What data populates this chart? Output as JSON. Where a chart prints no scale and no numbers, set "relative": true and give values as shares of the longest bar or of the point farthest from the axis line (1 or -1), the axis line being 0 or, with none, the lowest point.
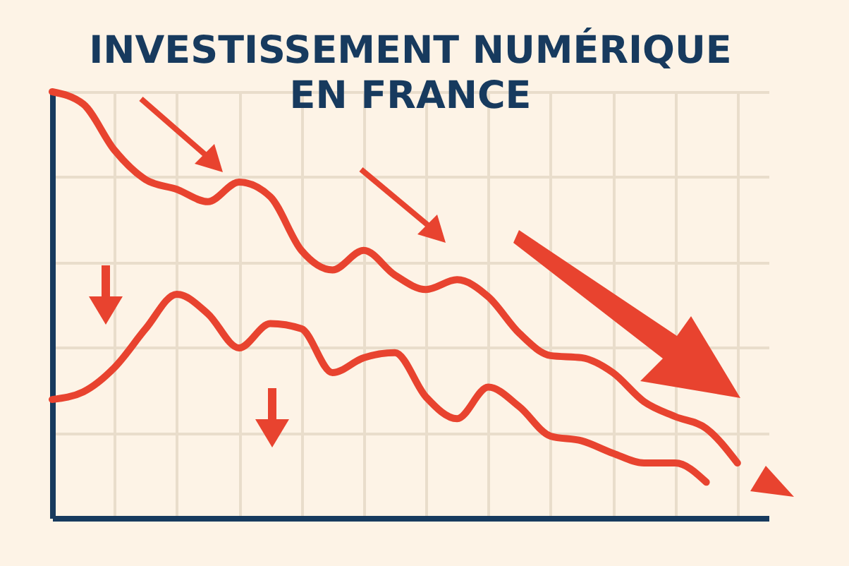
{
  "chart_data": {
    "type": "line",
    "title": "INVESTISSEMENT NUMÉRIQUE EN FRANCE",
    "relative": true,
    "grid": true,
    "marker": "none",
    "line_style": "solid",
    "categories": [
      null,
      null,
      null,
      null,
      null,
      null,
      null,
      null,
      null,
      null,
      null,
      null,
      null,
      null,
      null,
      null,
      null,
      null,
      null,
      null,
      null,
      null,
      null,
      null
    ],
    "series": [
      {
        "color": "#e8432f",
        "values": [
          1.0,
          0.971,
          0.863,
          0.794,
          0.771,
          0.742,
          0.788,
          0.754,
          0.628,
          0.582,
          0.628,
          0.57,
          0.536,
          0.559,
          0.519,
          0.433,
          0.381,
          0.376,
          0.341,
          0.273,
          0.238,
          0.21,
          0.129,
          null
        ]
      },
      {
        "color": "#e8432f",
        "values": [
          0.278,
          0.296,
          0.353,
          0.444,
          0.525,
          0.479,
          0.399,
          0.456,
          0.444,
          0.341,
          0.376,
          0.388,
          0.284,
          0.233,
          0.307,
          0.261,
          0.192,
          0.181,
          0.152,
          0.129,
          0.129,
          0.084,
          null,
          null
        ]
      }
    ]
  }
}
